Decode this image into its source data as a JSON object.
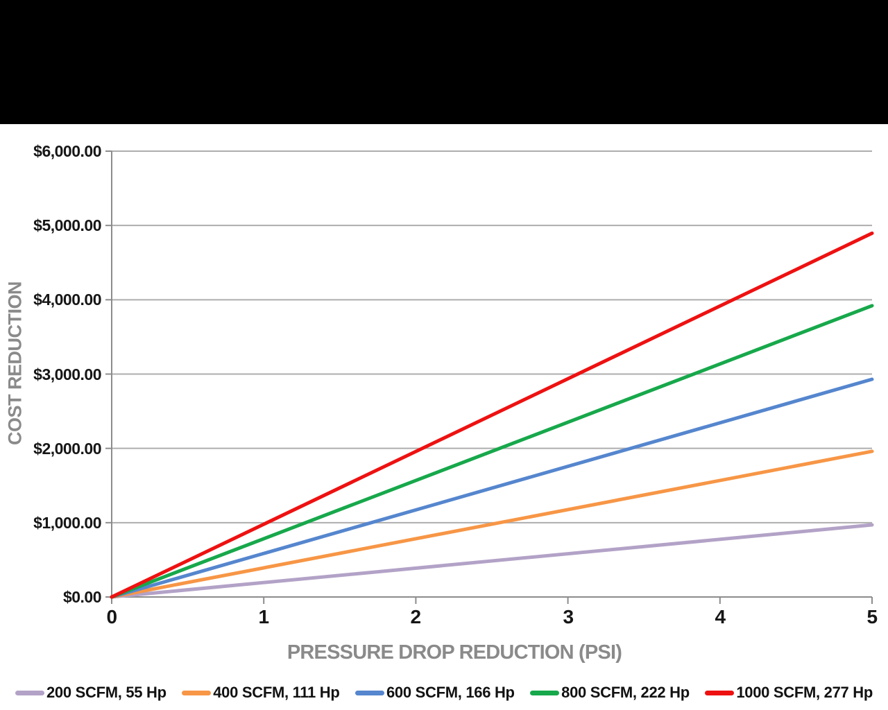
{
  "page": {
    "top_bar_color": "#000000",
    "background_color": "#ffffff"
  },
  "chart_data": {
    "type": "line",
    "title": "",
    "xlabel": "PRESSURE DROP REDUCTION (PSI)",
    "ylabel": "COST REDUCTION",
    "xlim": [
      0,
      5
    ],
    "ylim": [
      0,
      6000
    ],
    "x_tick_values": [
      0,
      1,
      2,
      3,
      4,
      5
    ],
    "x_tick_labels": [
      "0",
      "1",
      "2",
      "3",
      "4",
      "5"
    ],
    "y_tick_labels": [
      "$6,000.00",
      "$5,000.00",
      "$4,000.00",
      "$3,000.00",
      "$2,000.00",
      "$1,000.00",
      "$0.00"
    ],
    "y_gridline_values": [
      1000,
      2000,
      3000,
      4000,
      5000,
      6000
    ],
    "y_tick_mark_values": [
      0,
      1000,
      2000,
      3000,
      4000,
      5000,
      6000
    ],
    "grid": "horizontal-only",
    "legend_position": "bottom",
    "gridline_color": "#adadad",
    "axis_color": "#8c8c8c",
    "tick_label_color": "#161616",
    "axis_title_color": "#8a8a8a",
    "line_width": 5,
    "series": [
      {
        "name": "200 SCFM, 55 Hp",
        "color": "#b3a2c7",
        "x": [
          0,
          5
        ],
        "y": [
          0,
          970
        ]
      },
      {
        "name": "400 SCFM, 111 Hp",
        "color": "#f79646",
        "x": [
          0,
          5
        ],
        "y": [
          0,
          1960
        ]
      },
      {
        "name": "600 SCFM, 166 Hp",
        "color": "#5586ce",
        "x": [
          0,
          5
        ],
        "y": [
          0,
          2930
        ]
      },
      {
        "name": "800 SCFM, 222 Hp",
        "color": "#17a84b",
        "x": [
          0,
          5
        ],
        "y": [
          0,
          3920
        ]
      },
      {
        "name": "1000 SCFM, 277 Hp",
        "color": "#ee1111",
        "x": [
          0,
          5
        ],
        "y": [
          0,
          4895
        ]
      }
    ]
  }
}
